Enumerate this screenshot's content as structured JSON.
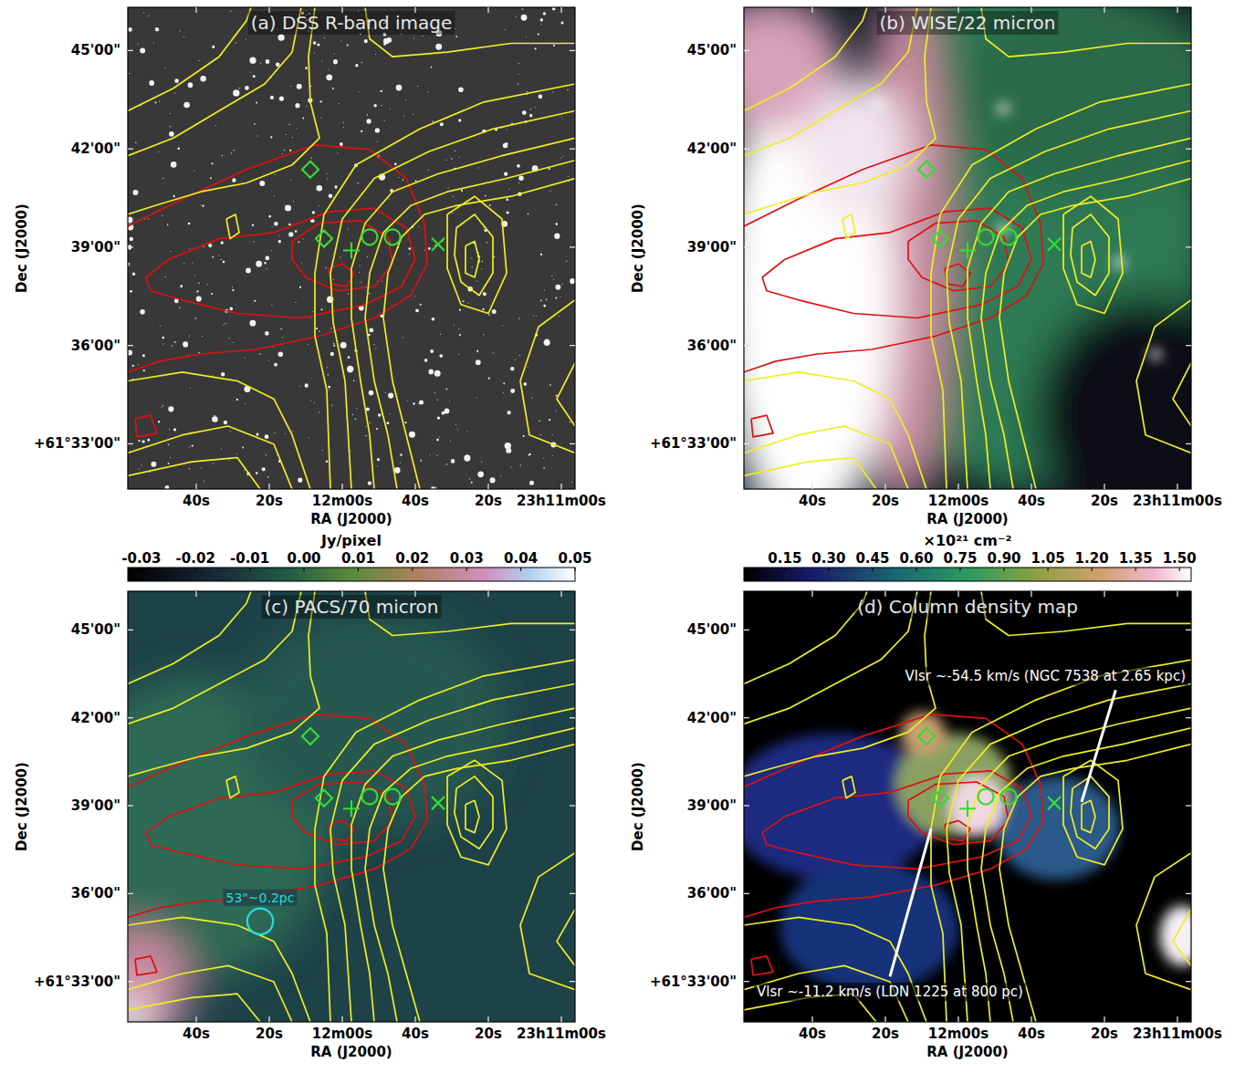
{
  "chart_data": [
    {
      "type": "image",
      "title": "(a) DSS R-band image",
      "x_label": "RA (J2000)",
      "y_label": "Dec (J2000)",
      "xlim": [
        118.75,
        -3.75
      ],
      "ylim": [
        31.62,
        46.32
      ],
      "xticks": [
        {
          "value": 100,
          "label": "40s"
        },
        {
          "value": 80,
          "label": "20s"
        },
        {
          "value": 60,
          "label": "12m00s"
        },
        {
          "value": 40,
          "label": "40s"
        },
        {
          "value": 20,
          "label": "20s"
        },
        {
          "value": 0,
          "label": "23h11m00s"
        }
      ],
      "yticks": [
        {
          "value": 33,
          "label": "+61°33'00\""
        },
        {
          "value": 36,
          "label": "36'00\""
        },
        {
          "value": 39,
          "label": "39'00\""
        },
        {
          "value": 42,
          "label": "42'00\""
        },
        {
          "value": 45,
          "label": "45'00\""
        }
      ]
    },
    {
      "type": "image",
      "title": "(b) WISE/22 micron",
      "x_label": "RA (J2000)",
      "y_label": "Dec (J2000)",
      "xlim": [
        118.75,
        -3.75
      ],
      "ylim": [
        31.62,
        46.32
      ],
      "xticks": [
        {
          "value": 100,
          "label": "40s"
        },
        {
          "value": 80,
          "label": "20s"
        },
        {
          "value": 60,
          "label": "12m00s"
        },
        {
          "value": 40,
          "label": "40s"
        },
        {
          "value": 20,
          "label": "20s"
        },
        {
          "value": 0,
          "label": "23h11m00s"
        }
      ],
      "yticks": [
        {
          "value": 33,
          "label": "+61°33'00\""
        },
        {
          "value": 36,
          "label": "36'00\""
        },
        {
          "value": 39,
          "label": "39'00\""
        },
        {
          "value": 42,
          "label": "42'00\""
        },
        {
          "value": 45,
          "label": "45'00\""
        }
      ]
    },
    {
      "type": "image",
      "title": "(c) PACS/70 micron",
      "x_label": "RA (J2000)",
      "y_label": "Dec (J2000)",
      "xlim": [
        118.75,
        -3.75
      ],
      "ylim": [
        31.62,
        46.32
      ],
      "xticks": [
        {
          "value": 100,
          "label": "40s"
        },
        {
          "value": 80,
          "label": "20s"
        },
        {
          "value": 60,
          "label": "12m00s"
        },
        {
          "value": 40,
          "label": "40s"
        },
        {
          "value": 20,
          "label": "20s"
        },
        {
          "value": 0,
          "label": "23h11m00s"
        }
      ],
      "yticks": [
        {
          "value": 33,
          "label": "+61°33'00\""
        },
        {
          "value": 36,
          "label": "36'00\""
        },
        {
          "value": 39,
          "label": "39'00\""
        },
        {
          "value": 42,
          "label": "42'00\""
        },
        {
          "value": 45,
          "label": "45'00\""
        }
      ],
      "colorbar": {
        "label": "Jy/pixel",
        "range": [
          -0.0325,
          0.05
        ],
        "ticks": [
          -0.03,
          -0.02,
          -0.01,
          {
            "value": 0,
            "label": "0.00"
          },
          0.01,
          0.02,
          0.03,
          0.04,
          0.05
        ]
      },
      "beam": {
        "label": "53\"~0.2pc",
        "x": 82.5,
        "y": 35.05,
        "diameter_arcsec": 53,
        "color": "#22dddd"
      }
    },
    {
      "type": "image",
      "title": "(d) Column density map",
      "x_label": "RA (J2000)",
      "y_label": "Dec (J2000)",
      "xlim": [
        118.75,
        -3.75
      ],
      "ylim": [
        31.62,
        46.32
      ],
      "xticks": [
        {
          "value": 100,
          "label": "40s"
        },
        {
          "value": 80,
          "label": "20s"
        },
        {
          "value": 60,
          "label": "12m00s"
        },
        {
          "value": 40,
          "label": "40s"
        },
        {
          "value": 20,
          "label": "20s"
        },
        {
          "value": 0,
          "label": "23h11m00s"
        }
      ],
      "yticks": [
        {
          "value": 33,
          "label": "+61°33'00\""
        },
        {
          "value": 36,
          "label": "36'00\""
        },
        {
          "value": 39,
          "label": "39'00\""
        },
        {
          "value": 42,
          "label": "42'00\""
        },
        {
          "value": 45,
          "label": "45'00\""
        }
      ],
      "colorbar": {
        "label": "×10²¹ cm⁻²",
        "range": [
          0.01,
          1.54
        ],
        "ticks": [
          0.15,
          {
            "value": 0.3,
            "label": "0.30"
          },
          0.45,
          {
            "value": 0.6,
            "label": "0.60"
          },
          0.75,
          {
            "value": 0.9,
            "label": "0.90"
          },
          1.05,
          {
            "value": 1.2,
            "label": "1.20"
          },
          1.35,
          {
            "value": 1.5,
            "label": "1.50"
          }
        ]
      },
      "annotations": [
        {
          "text": "Vlsr ~-54.5 km/s (NGC 7538 at 2.65 kpc)",
          "x": [
            16.9,
            26.25
          ],
          "y": [
            42.95,
            39.13
          ]
        },
        {
          "text": "Vlsr ~-11.2 km/s (LDN 1225 at 800 pc)",
          "x": [
            78.75,
            67.5
          ],
          "y": [
            33.17,
            38.21
          ]
        }
      ]
    }
  ],
  "overlay": {
    "contours": [
      {
        "color": "#dd1111",
        "lines": [
          {
            "x": [
              118.75,
              103.75,
              86.25,
              67.5,
              52.5,
              42.5,
              37.5,
              36.75,
              41.25,
              51.25,
              66.25,
              83.75,
              98.75,
              110,
              118.75
            ],
            "y": [
              39.64,
              40.47,
              41.37,
              42.12,
              41.98,
              41.1,
              39.73,
              38.49,
              37.53,
              36.84,
              36.29,
              35.88,
              35.74,
              35.52,
              35.19
            ]
          },
          {
            "x": [
              113.75,
              107.5,
              93.75,
              78.75,
              63.75,
              51.25,
              42.5,
              40,
              43.75,
              53.75,
              71.25,
              88.75,
              103.75,
              112.5,
              113.75
            ],
            "y": [
              38.08,
              38.63,
              39.26,
              39.45,
              40.08,
              40.19,
              39.59,
              38.63,
              37.8,
              37.25,
              36.84,
              36.98,
              37.39,
              37.67,
              38.08
            ]
          },
          {
            "x": [
              73.75,
              66.25,
              55,
              47.5,
              46.25,
              51.25,
              61.25,
              70,
              73.75,
              73.75
            ],
            "y": [
              39.18,
              39.73,
              39.81,
              39.31,
              38.49,
              37.8,
              37.67,
              38.08,
              38.63,
              39.18
            ]
          },
          {
            "x": [
              63.75,
              60,
              56.75,
              58.75,
              63,
              63.75
            ],
            "y": [
              38.35,
              38.49,
              38.21,
              37.8,
              37.88,
              38.35
            ]
          },
          {
            "x": [
              116.75,
              112.5,
              110.75,
              116.25,
              116.75
            ],
            "y": [
              33.76,
              33.87,
              33.32,
              33.21,
              33.76
            ]
          }
        ]
      },
      {
        "color": "#eeee22",
        "lines": [
          {
            "x": [
              -3.75,
              13.75,
              28.75,
              37.5,
              43.75,
              47.5,
              48.75,
              46.25,
              42.5,
              38.75
            ],
            "y": [
              41.1,
              40.55,
              40.27,
              40.0,
              39.31,
              38.21,
              36.84,
              34.92,
              33.27,
              31.62
            ]
          },
          {
            "x": [
              -3.75,
              15,
              31.25,
              41.25,
              48.75,
              52.5,
              53.75,
              51.25,
              47.5,
              45
            ],
            "y": [
              41.65,
              41.1,
              40.69,
              40.27,
              39.45,
              38.21,
              36.84,
              34.92,
              33.27,
              31.62
            ]
          },
          {
            "x": [
              -3.75,
              16.25,
              33.75,
              46.25,
              53.75,
              57.5,
              57.5,
              55,
              52.5,
              51.25
            ],
            "y": [
              42.33,
              41.79,
              41.24,
              40.69,
              39.73,
              38.35,
              36.84,
              34.92,
              33.27,
              31.62
            ]
          },
          {
            "x": [
              -3.75,
              18.75,
              36.25,
              51.25,
              60,
              63.25,
              62.5,
              59.25,
              57.5
            ],
            "y": [
              43.16,
              42.61,
              41.92,
              41.1,
              39.86,
              38.21,
              36.7,
              34.92,
              31.62
            ]
          },
          {
            "x": [
              -3.75,
              21.25,
              38.75,
              56.25,
              65,
              67.5,
              67.5,
              64.25,
              63.25
            ],
            "y": [
              43.98,
              43.43,
              42.61,
              41.51,
              40.0,
              38.21,
              36.29,
              34.64,
              31.62
            ]
          },
          {
            "x": [
              67.5,
              69.25,
              68.75,
              66.25,
              73.75,
              86.25,
              98.75,
              111.25,
              118.75
            ],
            "y": [
              46.32,
              44.81,
              43.43,
              42.33,
              41.51,
              40.96,
              40.69,
              40.27,
              40.0
            ]
          },
          {
            "x": [
              118.75,
              106.25,
              93.75,
              81.25,
              73.75,
              71.25
            ],
            "y": [
              41.79,
              42.33,
              43.16,
              43.98,
              44.95,
              46.32
            ]
          },
          {
            "x": [
              118.75,
              106.25,
              93.75,
              86.25,
              85
            ],
            "y": [
              43.16,
              43.85,
              44.81,
              45.91,
              46.32
            ]
          },
          {
            "x": [
              53.75,
              52.5,
              46.25,
              31.25,
              13.75,
              -3.75
            ],
            "y": [
              46.32,
              45.36,
              44.81,
              44.95,
              45.22,
              45.22
            ]
          },
          {
            "x": [
              26.25,
              23.75,
              22.5,
              23.75,
              26.25,
              26.25
            ],
            "y": [
              39.04,
              39.18,
              38.63,
              38.08,
              38.21,
              39.04
            ]
          },
          {
            "x": [
              28.75,
              23.75,
              18.75,
              18.75,
              22.5,
              27.5,
              29.25,
              28.75
            ],
            "y": [
              39.59,
              40.0,
              39.31,
              38.21,
              37.53,
              37.94,
              38.76,
              39.59
            ]
          },
          {
            "x": [
              31.25,
              23.75,
              16.25,
              15,
              20,
              27.5,
              31.25,
              31.25
            ],
            "y": [
              40.0,
              40.55,
              39.86,
              38.21,
              36.98,
              37.25,
              38.35,
              40.0
            ]
          },
          {
            "x": [
              91.75,
              89.25,
              88.25,
              90.75,
              91.75
            ],
            "y": [
              39.86,
              40.0,
              39.45,
              39.26,
              39.86
            ]
          },
          {
            "x": [
              118.75,
              103.75,
              91.25,
              78.75,
              73.75
            ],
            "y": [
              32.72,
              33.27,
              33.54,
              32.99,
              31.62
            ]
          },
          {
            "x": [
              118.75,
              101.25,
              88.75,
              82.5
            ],
            "y": [
              32.03,
              32.45,
              32.58,
              31.62
            ]
          },
          {
            "x": [
              118.75,
              103.75,
              88.75,
              78.75,
              73.75,
              68.75
            ],
            "y": [
              34.92,
              35.19,
              34.92,
              34.37,
              33.27,
              31.62
            ]
          },
          {
            "x": [
              -3.75,
              6.25,
              11.25,
              8.75,
              -3.75
            ],
            "y": [
              37.39,
              36.57,
              34.92,
              33.27,
              32.72
            ]
          },
          {
            "x": [
              -3.75,
              1.25,
              -3.75
            ],
            "y": [
              35.47,
              34.37,
              33.54
            ]
          }
        ]
      }
    ],
    "markers": {
      "color": "#33dd33",
      "points": [
        {
          "marker": "diamond",
          "x": 68.75,
          "y": 41.37
        },
        {
          "marker": "diamond",
          "x": 65,
          "y": 39.26
        },
        {
          "marker": "plus",
          "x": 57.5,
          "y": 38.9
        },
        {
          "marker": "circle",
          "x": 52.5,
          "y": 39.31
        },
        {
          "marker": "circle",
          "x": 46.25,
          "y": 39.31
        },
        {
          "marker": "x",
          "x": 33.75,
          "y": 39.09
        }
      ]
    }
  }
}
